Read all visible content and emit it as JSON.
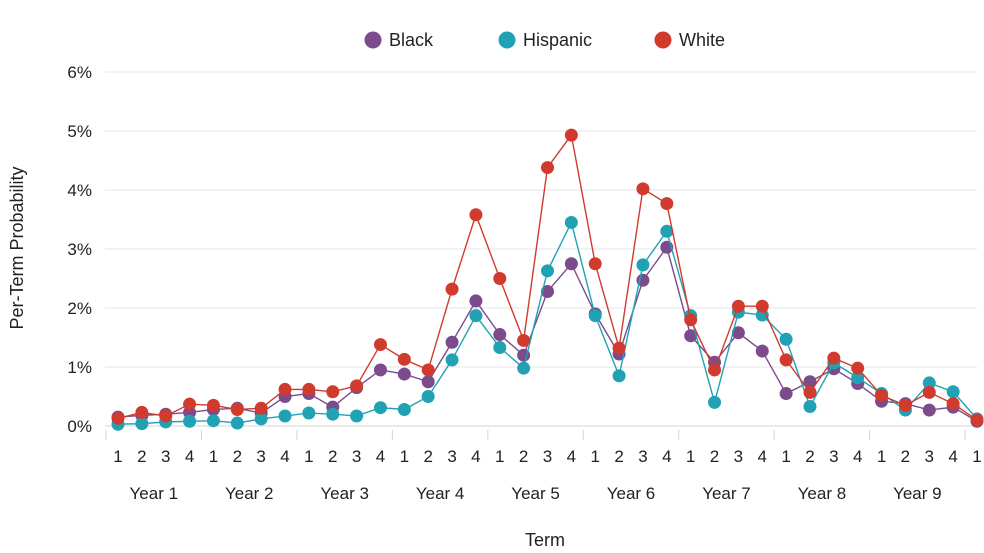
{
  "chart_data": {
    "type": "line",
    "title": "",
    "xlabel": "Term",
    "ylabel": "Per-Term Probability",
    "ylim": [
      0,
      6
    ],
    "y_ticks": [
      "0%",
      "1%",
      "2%",
      "3%",
      "4%",
      "5%",
      "6%"
    ],
    "y_unit": "%",
    "grid": true,
    "legend_position": "top-center",
    "categories": [
      "1",
      "2",
      "3",
      "4",
      "1",
      "2",
      "3",
      "4",
      "1",
      "2",
      "3",
      "4",
      "1",
      "2",
      "3",
      "4",
      "1",
      "2",
      "3",
      "4",
      "1",
      "2",
      "3",
      "4",
      "1",
      "2",
      "3",
      "4",
      "1",
      "2",
      "3",
      "4",
      "1",
      "2",
      "3",
      "4",
      "1"
    ],
    "year_groups": [
      {
        "label": "Year 1"
      },
      {
        "label": "Year 2"
      },
      {
        "label": "Year 3"
      },
      {
        "label": "Year 4"
      },
      {
        "label": "Year 5"
      },
      {
        "label": "Year 6"
      },
      {
        "label": "Year 7"
      },
      {
        "label": "Year 8"
      },
      {
        "label": "Year 9"
      }
    ],
    "series": [
      {
        "name": "Black",
        "color": "#7b4b8c",
        "values": [
          0.15,
          0.18,
          0.2,
          0.23,
          0.28,
          0.3,
          0.22,
          0.5,
          0.55,
          0.32,
          0.65,
          0.95,
          0.88,
          0.75,
          1.42,
          2.12,
          1.55,
          1.2,
          2.28,
          2.75,
          1.9,
          1.22,
          2.47,
          3.03,
          1.53,
          1.08,
          1.58,
          1.27,
          0.55,
          0.75,
          0.97,
          0.72,
          0.42,
          0.38,
          0.27,
          0.32,
          0.08
        ]
      },
      {
        "name": "Hispanic",
        "color": "#20a2b4",
        "values": [
          0.03,
          0.04,
          0.07,
          0.08,
          0.09,
          0.05,
          0.12,
          0.17,
          0.22,
          0.2,
          0.17,
          0.31,
          0.28,
          0.5,
          1.12,
          1.87,
          1.33,
          0.98,
          2.63,
          3.45,
          1.87,
          0.85,
          2.73,
          3.3,
          1.87,
          0.4,
          1.93,
          1.88,
          1.47,
          0.33,
          1.07,
          0.82,
          0.55,
          0.27,
          0.73,
          0.58,
          0.12
        ]
      },
      {
        "name": "White",
        "color": "#d13b2e",
        "values": [
          0.13,
          0.23,
          0.17,
          0.37,
          0.35,
          0.28,
          0.3,
          0.62,
          0.62,
          0.58,
          0.68,
          1.38,
          1.13,
          0.95,
          2.32,
          3.58,
          2.5,
          1.45,
          4.38,
          4.93,
          2.75,
          1.32,
          4.02,
          3.77,
          1.8,
          0.95,
          2.03,
          2.03,
          1.12,
          0.57,
          1.15,
          0.98,
          0.52,
          0.35,
          0.57,
          0.38,
          0.1
        ]
      }
    ]
  }
}
